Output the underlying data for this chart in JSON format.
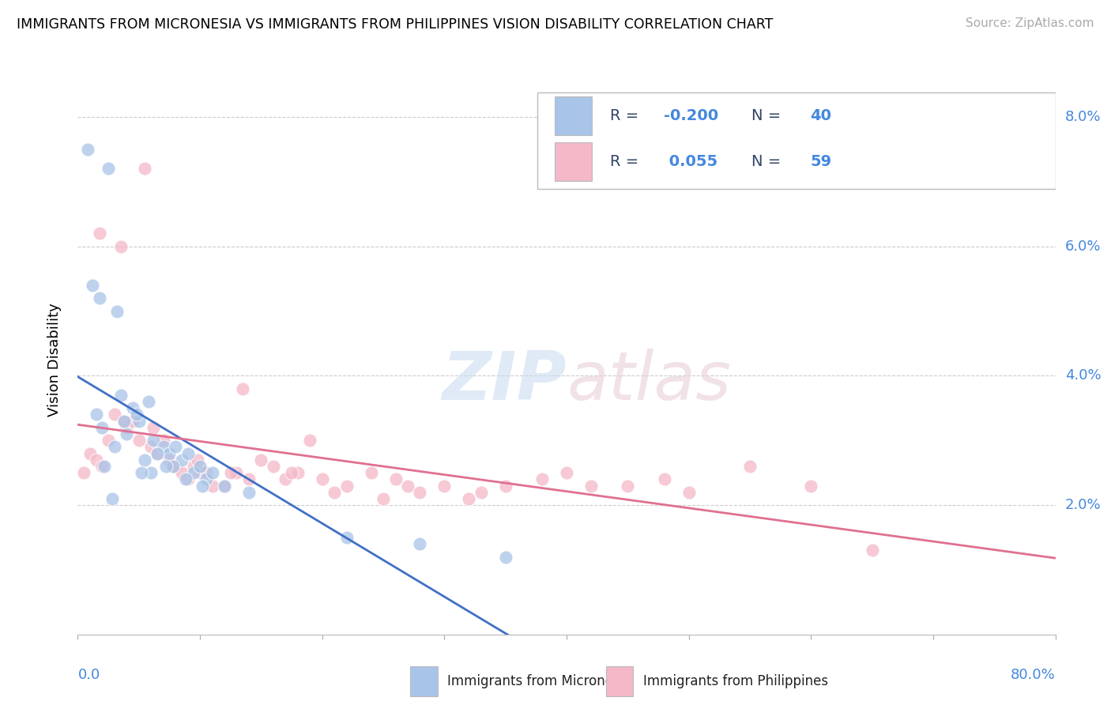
{
  "title": "IMMIGRANTS FROM MICRONESIA VS IMMIGRANTS FROM PHILIPPINES VISION DISABILITY CORRELATION CHART",
  "source": "Source: ZipAtlas.com",
  "ylabel": "Vision Disability",
  "r_micronesia": -0.2,
  "n_micronesia": 40,
  "r_philippines": 0.055,
  "n_philippines": 59,
  "micronesia_color": "#a8c4e8",
  "philippines_color": "#f4b8c8",
  "micronesia_line_color": "#4070c8",
  "philippines_line_color": "#e07090",
  "text_blue": "#4488dd",
  "watermark_color": "#d8e8f0",
  "xlim": [
    0.0,
    80.0
  ],
  "ylim": [
    0.0,
    8.5
  ],
  "yticks": [
    2.0,
    4.0,
    6.0,
    8.0
  ],
  "micronesia_x": [
    0.8,
    2.5,
    1.8,
    3.2,
    4.5,
    5.0,
    5.8,
    6.2,
    7.0,
    7.5,
    8.0,
    8.5,
    9.0,
    9.5,
    10.0,
    10.5,
    11.0,
    1.2,
    2.0,
    3.0,
    4.0,
    5.5,
    6.5,
    7.8,
    3.5,
    4.8,
    6.0,
    2.2,
    1.5,
    3.8,
    5.2,
    7.2,
    8.8,
    10.2,
    12.0,
    14.0,
    22.0,
    28.0,
    35.0,
    2.8
  ],
  "micronesia_y": [
    7.5,
    7.2,
    5.2,
    5.0,
    3.5,
    3.3,
    3.6,
    3.0,
    2.9,
    2.8,
    2.9,
    2.7,
    2.8,
    2.5,
    2.6,
    2.4,
    2.5,
    5.4,
    3.2,
    2.9,
    3.1,
    2.7,
    2.8,
    2.6,
    3.7,
    3.4,
    2.5,
    2.6,
    3.4,
    3.3,
    2.5,
    2.6,
    2.4,
    2.3,
    2.3,
    2.2,
    1.5,
    1.4,
    1.2,
    2.1
  ],
  "philippines_x": [
    5.5,
    1.8,
    3.5,
    0.5,
    1.0,
    1.5,
    2.0,
    2.5,
    3.0,
    4.0,
    4.5,
    5.0,
    6.0,
    6.5,
    7.0,
    7.5,
    8.0,
    8.5,
    9.0,
    9.5,
    10.0,
    11.0,
    12.0,
    13.0,
    14.0,
    15.0,
    16.0,
    17.0,
    18.0,
    20.0,
    22.0,
    24.0,
    26.0,
    28.0,
    30.0,
    32.0,
    35.0,
    38.0,
    40.0,
    42.0,
    45.0,
    48.0,
    50.0,
    55.0,
    60.0,
    65.0,
    7.8,
    10.5,
    13.5,
    17.5,
    21.0,
    25.0,
    33.0,
    3.8,
    6.2,
    9.8,
    12.5,
    19.0,
    27.0
  ],
  "philippines_y": [
    7.2,
    6.2,
    6.0,
    2.5,
    2.8,
    2.7,
    2.6,
    3.0,
    3.4,
    3.2,
    3.3,
    3.0,
    2.9,
    2.8,
    3.0,
    2.7,
    2.6,
    2.5,
    2.4,
    2.6,
    2.5,
    2.3,
    2.3,
    2.5,
    2.4,
    2.7,
    2.6,
    2.4,
    2.5,
    2.4,
    2.3,
    2.5,
    2.4,
    2.2,
    2.3,
    2.1,
    2.3,
    2.4,
    2.5,
    2.3,
    2.3,
    2.4,
    2.2,
    2.6,
    2.3,
    1.3,
    2.6,
    2.5,
    3.8,
    2.5,
    2.2,
    2.1,
    2.2,
    3.3,
    3.2,
    2.7,
    2.5,
    3.0,
    2.3
  ]
}
